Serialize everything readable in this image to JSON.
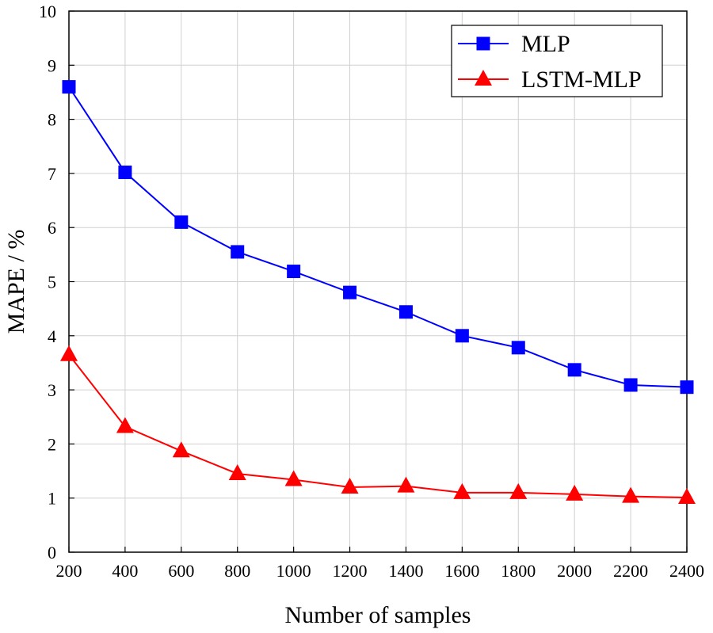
{
  "chart_data": {
    "type": "line",
    "xlabel": "Number of samples",
    "ylabel": "MAPE / %",
    "x": [
      200,
      400,
      600,
      800,
      1000,
      1200,
      1400,
      1600,
      1800,
      2000,
      2200,
      2400
    ],
    "xlim": [
      200,
      2400
    ],
    "ylim": [
      0,
      10
    ],
    "xticks": [
      200,
      400,
      600,
      800,
      1000,
      1200,
      1400,
      1600,
      1800,
      2000,
      2200,
      2400
    ],
    "yticks": [
      0,
      1,
      2,
      3,
      4,
      5,
      6,
      7,
      8,
      9,
      10
    ],
    "grid": true,
    "legend_position": "top-right",
    "series": [
      {
        "name": "MLP",
        "color": "#0000ff",
        "marker": "square",
        "values": [
          8.6,
          7.02,
          6.1,
          5.55,
          5.19,
          4.8,
          4.44,
          4.0,
          3.78,
          3.37,
          3.09,
          3.05
        ]
      },
      {
        "name": "LSTM-MLP",
        "color": "#ff0000",
        "marker": "triangle",
        "values": [
          3.65,
          2.32,
          1.87,
          1.45,
          1.34,
          1.2,
          1.22,
          1.1,
          1.1,
          1.07,
          1.03,
          1.01
        ]
      }
    ]
  }
}
